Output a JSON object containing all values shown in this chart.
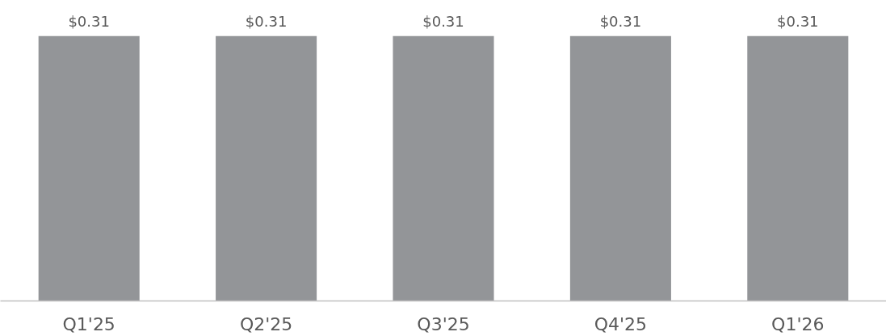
{
  "chart_data": {
    "type": "bar",
    "categories": [
      "Q1'25",
      "Q2'25",
      "Q3'25",
      "Q4'25",
      "Q1'26"
    ],
    "values": [
      0.31,
      0.31,
      0.31,
      0.31,
      0.31
    ],
    "value_labels": [
      "$0.31",
      "$0.31",
      "$0.31",
      "$0.31",
      "$0.31"
    ],
    "color": "#939598",
    "grid": false
  }
}
